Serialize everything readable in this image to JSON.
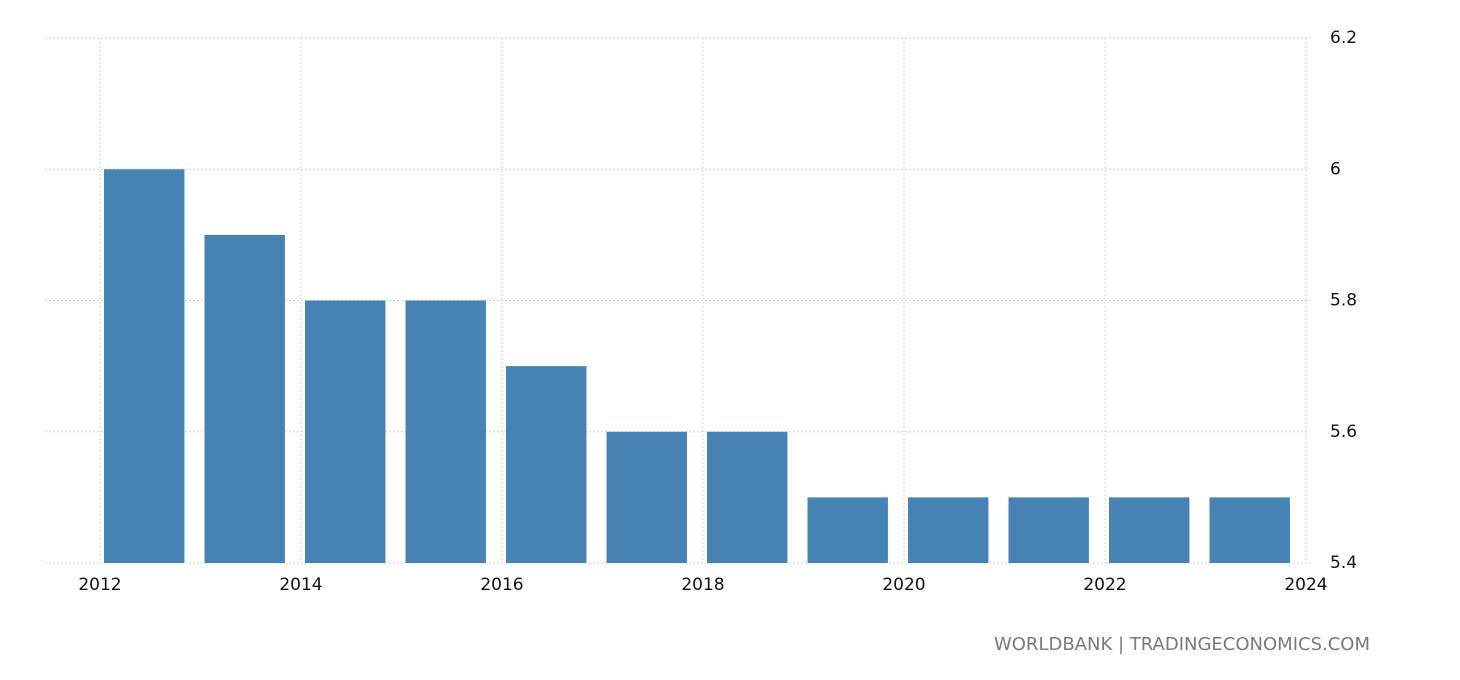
{
  "chart_data": {
    "type": "bar",
    "x": [
      2012,
      2013,
      2014,
      2015,
      2016,
      2017,
      2018,
      2019,
      2020,
      2021,
      2022,
      2023
    ],
    "values": [
      6,
      5.9,
      5.8,
      5.8,
      5.7,
      5.6,
      5.6,
      5.5,
      5.5,
      5.5,
      5.5,
      5.5
    ],
    "color": "#4682b4",
    "xlim": [
      2012,
      2024
    ],
    "xticks": [
      2012,
      2014,
      2016,
      2018,
      2020,
      2022,
      2024
    ],
    "ylim": [
      5.4,
      6.2
    ],
    "yticks": [
      5.4,
      5.6,
      5.8,
      6,
      6.2
    ],
    "grid": true,
    "source": "WORLDBANK | TRADINGECONOMICS.COM"
  }
}
